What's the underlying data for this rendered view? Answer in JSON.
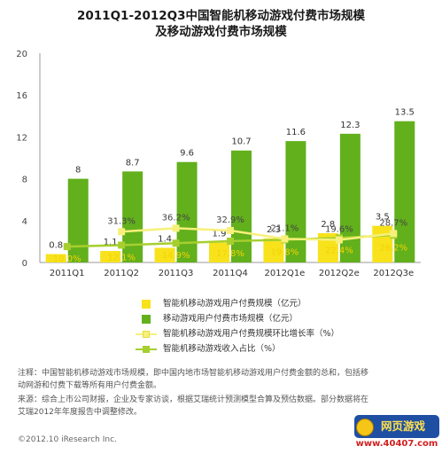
{
  "title_line1": "2011Q1-2012Q3中国智能机移动游戏付费市场规模",
  "title_line2": "及移动游戏付费市场规模",
  "chart_data": {
    "type": "bar",
    "categories": [
      "2011Q1",
      "2011Q2",
      "2011Q3",
      "2011Q4",
      "2012Q1e",
      "2012Q2e",
      "2012Q3e"
    ],
    "ylim": [
      0,
      20
    ],
    "yticks": [
      0,
      4,
      8,
      12,
      16,
      20
    ],
    "grid": false,
    "legend_position": "bottom",
    "series": [
      {
        "name": "智能机移动游戏用户付费规模（亿元）",
        "kind": "bar",
        "values": [
          0.8,
          1.1,
          1.4,
          1.9,
          2.3,
          2.8,
          3.5
        ],
        "labels": [
          "0.8",
          "1.1",
          "1.4",
          "1.9",
          "2.3",
          "2.8",
          "3.5"
        ]
      },
      {
        "name": "移动游戏用户付费市场规模（亿元）",
        "kind": "bar",
        "values": [
          8,
          8.7,
          9.6,
          10.7,
          11.6,
          12.3,
          13.5
        ],
        "labels": [
          "8",
          "8.7",
          "9.6",
          "10.7",
          "11.6",
          "12.3",
          "13.5"
        ]
      },
      {
        "name": "智能机移动游戏用户付费规模环比增长率（%）",
        "kind": "line",
        "values_pct": [
          null,
          31.3,
          36.2,
          32.9,
          21.1,
          19.6,
          28.7
        ],
        "labels": [
          "",
          "31.3%",
          "36.2%",
          "32.9%",
          "21.1%",
          "19.6%",
          "28.7%"
        ]
      },
      {
        "name": "智能机移动游戏收入占比（%）",
        "kind": "line",
        "values_pct": [
          10.0,
          12.1,
          14.9,
          17.8,
          19.8,
          22.4,
          26.2
        ],
        "labels": [
          "10.0%",
          "12.1%",
          "14.9%",
          "17.8%",
          "19.8%",
          "22.4%",
          "26.2%"
        ]
      }
    ]
  },
  "colors": {
    "bar_smart": "#f7e21c",
    "bar_total": "#62b01c",
    "line_growth": "#f7f07a",
    "line_share": "#a6cf2e",
    "label_yellow": "#f4d400",
    "label_green": "#8dbb1a"
  },
  "notes": {
    "line1": "注释：中国智能机移动游戏市场规模，即中国内地市场智能机移动游戏用户付费金额的总和，包括移",
    "line2": "动网游和付费下载等所有用户付费金额。",
    "line3": "来源：综合上市公司财报，企业及专家访谈，根据艾瑞统计预测模型合算及预估数据。部分数据将在",
    "line4": "艾瑞2012年年度报告中调整修改。"
  },
  "copyright": "©2012.10 iResearch Inc.",
  "watermark": {
    "badge": "网页游戏",
    "url": "www.40407.com"
  }
}
